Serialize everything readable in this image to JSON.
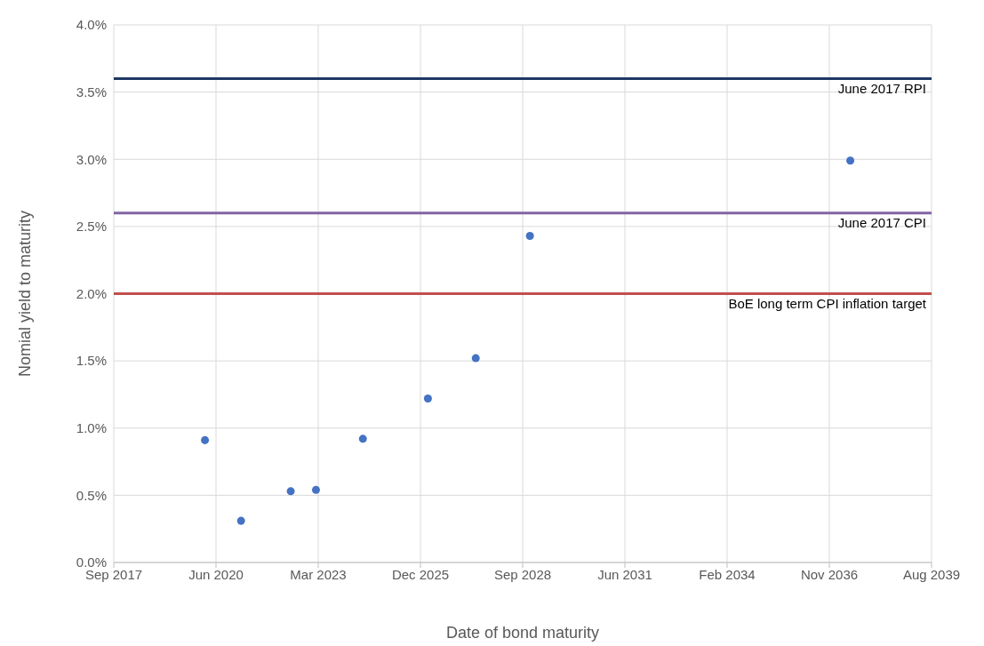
{
  "chart_data": {
    "type": "scatter",
    "xlabel": "Date of bond maturity",
    "ylabel": "Nomial yield to maturity",
    "x": [
      "2020-03-02",
      "2021-02-18",
      "2022-06-19",
      "2023-02-21",
      "2024-05-25",
      "2026-02-20",
      "2027-06-03",
      "2028-11-14",
      "2037-06-14"
    ],
    "series": [
      {
        "color": "#4472c4",
        "values": [
          0.91,
          0.31,
          0.53,
          0.54,
          0.92,
          1.22,
          1.52,
          2.43,
          2.99
        ]
      }
    ],
    "xlim": [
      "2017-09-22",
      "2039-08-18"
    ],
    "xticks": [
      {
        "value": "2017-09-22",
        "label": "Sep 2017"
      },
      {
        "value": "2020-06-18",
        "label": "Jun 2020"
      },
      {
        "value": "2023-03-15",
        "label": "Mar 2023"
      },
      {
        "value": "2025-12-09",
        "label": "Dec 2025"
      },
      {
        "value": "2028-09-04",
        "label": "Sep 2028"
      },
      {
        "value": "2031-06-01",
        "label": "Jun 2031"
      },
      {
        "value": "2034-02-25",
        "label": "Feb 2034"
      },
      {
        "value": "2036-11-21",
        "label": "Nov 2036"
      },
      {
        "value": "2039-08-18",
        "label": "Aug 2039"
      }
    ],
    "ylim": [
      0,
      4
    ],
    "yticks": [
      {
        "value": 0,
        "label": "0.0%"
      },
      {
        "value": 0.5,
        "label": "0.5%"
      },
      {
        "value": 1,
        "label": "1.0%"
      },
      {
        "value": 1.5,
        "label": "1.5%"
      },
      {
        "value": 2,
        "label": "2.0%"
      },
      {
        "value": 2.5,
        "label": "2.5%"
      },
      {
        "value": 3,
        "label": "3.0%"
      },
      {
        "value": 3.5,
        "label": "3.5%"
      },
      {
        "value": 4,
        "label": "4.0%"
      }
    ],
    "ref_lines": [
      {
        "axis": "y",
        "value": 3.6,
        "label": "June 2017 RPI",
        "color": "#1f3864"
      },
      {
        "axis": "y",
        "value": 2.6,
        "label": "June 2017 CPI",
        "color": "#8064a2"
      },
      {
        "axis": "y",
        "value": 2,
        "label": "BoE long term CPI inflation target",
        "color": "#c0504d"
      }
    ],
    "grid": true,
    "marker": "circle"
  }
}
